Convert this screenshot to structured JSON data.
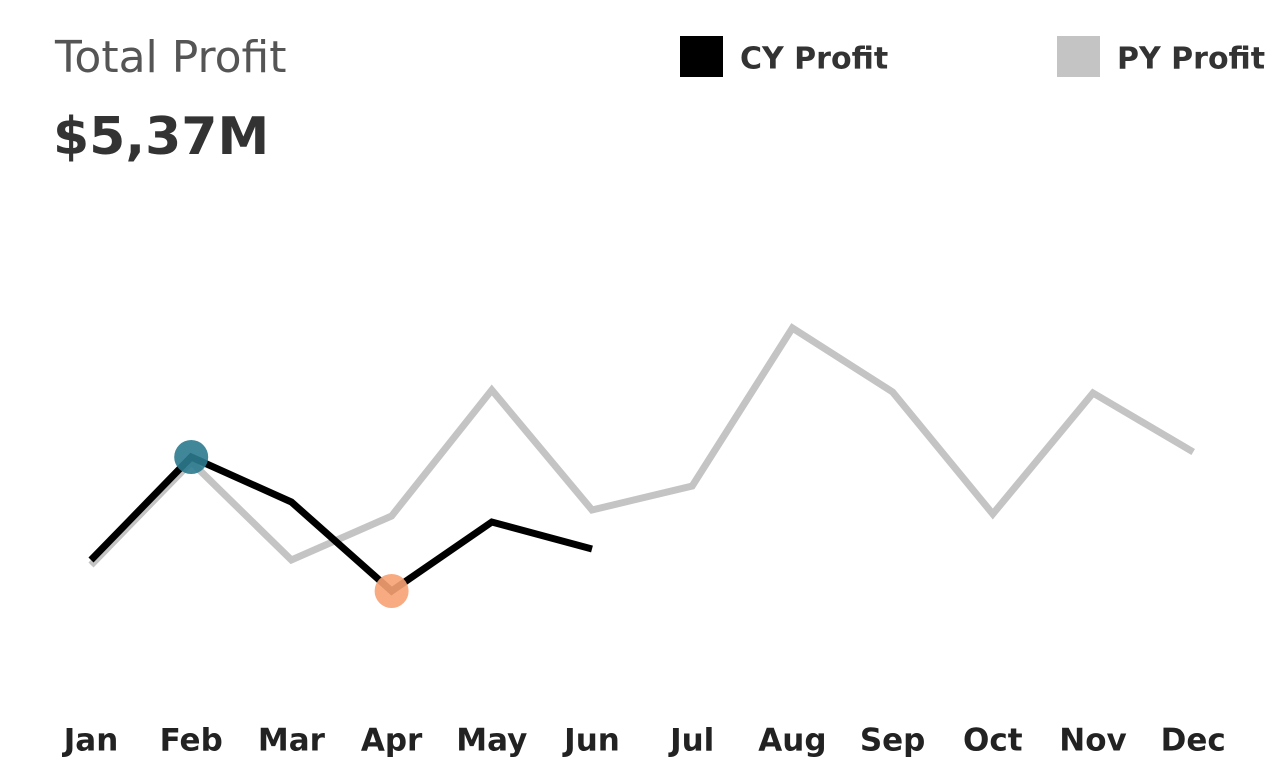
{
  "chart_data": {
    "type": "line",
    "title": "Total Profit",
    "subtitle": "$5,37M",
    "categories": [
      "Jan",
      "Feb",
      "Mar",
      "Apr",
      "May",
      "Jun",
      "Jul",
      "Aug",
      "Sep",
      "Oct",
      "Nov",
      "Dec"
    ],
    "series": [
      {
        "name": "CY Profit",
        "color": "#000000",
        "values": [
          28,
          48.6,
          39.6,
          21.8,
          35.6,
          30.2,
          null,
          null,
          null,
          null,
          null,
          null
        ]
      },
      {
        "name": "PY Profit",
        "color": "#c4c4c4",
        "values": [
          27,
          47.6,
          28,
          36.8,
          62,
          38,
          42.8,
          74.4,
          61.6,
          37.2,
          61.4,
          49.6
        ]
      }
    ],
    "max_color": "#2b7a8e",
    "min_color": "#f7a172",
    "ylim": [
      0,
      100
    ],
    "grid": false
  }
}
